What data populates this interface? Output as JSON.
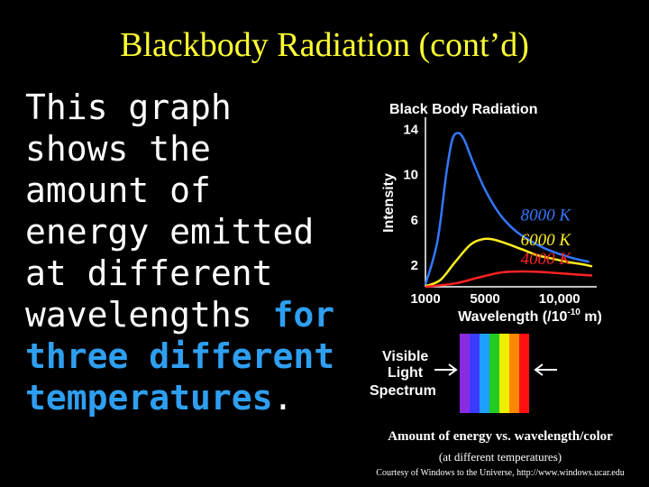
{
  "slide": {
    "title": "Blackbody Radiation (cont’d)",
    "body_plain": "This graph shows the amount of energy emitted at different wavelengths ",
    "body_highlight": "for three different temperatures",
    "body_end": "."
  },
  "chart_data": {
    "type": "line",
    "title": "Black Body Radiation",
    "xlabel": "Wavelength (/10",
    "xlabel_exp": "-10",
    "xlabel_unit": " m)",
    "ylabel": "Intensity",
    "x_ticks": [
      "1000",
      "5000",
      "10,000"
    ],
    "y_ticks": [
      "2",
      "6",
      "10",
      "14"
    ],
    "xlim": [
      1000,
      12500
    ],
    "ylim": [
      0,
      15
    ],
    "series": [
      {
        "name": "8000 K",
        "color": "#3377ff",
        "x": [
          1000,
          1800,
          2400,
          2800,
          3200,
          3600,
          4200,
          5000,
          6000,
          7000,
          8000,
          9000,
          10000,
          11000,
          12000
        ],
        "y": [
          0.2,
          4.0,
          10.0,
          13.0,
          13.6,
          13.0,
          11.0,
          8.6,
          6.4,
          5.0,
          4.1,
          3.4,
          2.9,
          2.5,
          2.2
        ]
      },
      {
        "name": "6000 K",
        "color": "#ffee22",
        "x": [
          1000,
          2000,
          3000,
          4000,
          4800,
          5500,
          6500,
          7500,
          8500,
          9500,
          10500,
          11500,
          12200
        ],
        "y": [
          0.05,
          0.6,
          2.2,
          3.7,
          4.2,
          4.2,
          3.8,
          3.3,
          2.8,
          2.5,
          2.2,
          2.0,
          1.8
        ]
      },
      {
        "name": "4000 K",
        "color": "#ff2222",
        "x": [
          1000,
          3000,
          4500,
          6000,
          7000,
          8000,
          9000,
          10000,
          11000,
          12200
        ],
        "y": [
          0.0,
          0.3,
          0.8,
          1.25,
          1.35,
          1.35,
          1.3,
          1.2,
          1.1,
          1.0
        ]
      }
    ],
    "spectrum": {
      "label_line1": "Visible",
      "label_line2": "Light",
      "label_line3": "Spectrum",
      "colors": [
        "#8a2be2",
        "#3b3bff",
        "#1f9fff",
        "#22cc22",
        "#eeee00",
        "#ff8800",
        "#ff1111"
      ]
    }
  },
  "captions": {
    "main": "Amount of energy vs. wavelength/color",
    "sub": "(at different temperatures)",
    "credit": "Courtesy of Windows to the Universe, http://www.windows.ucar.edu"
  }
}
